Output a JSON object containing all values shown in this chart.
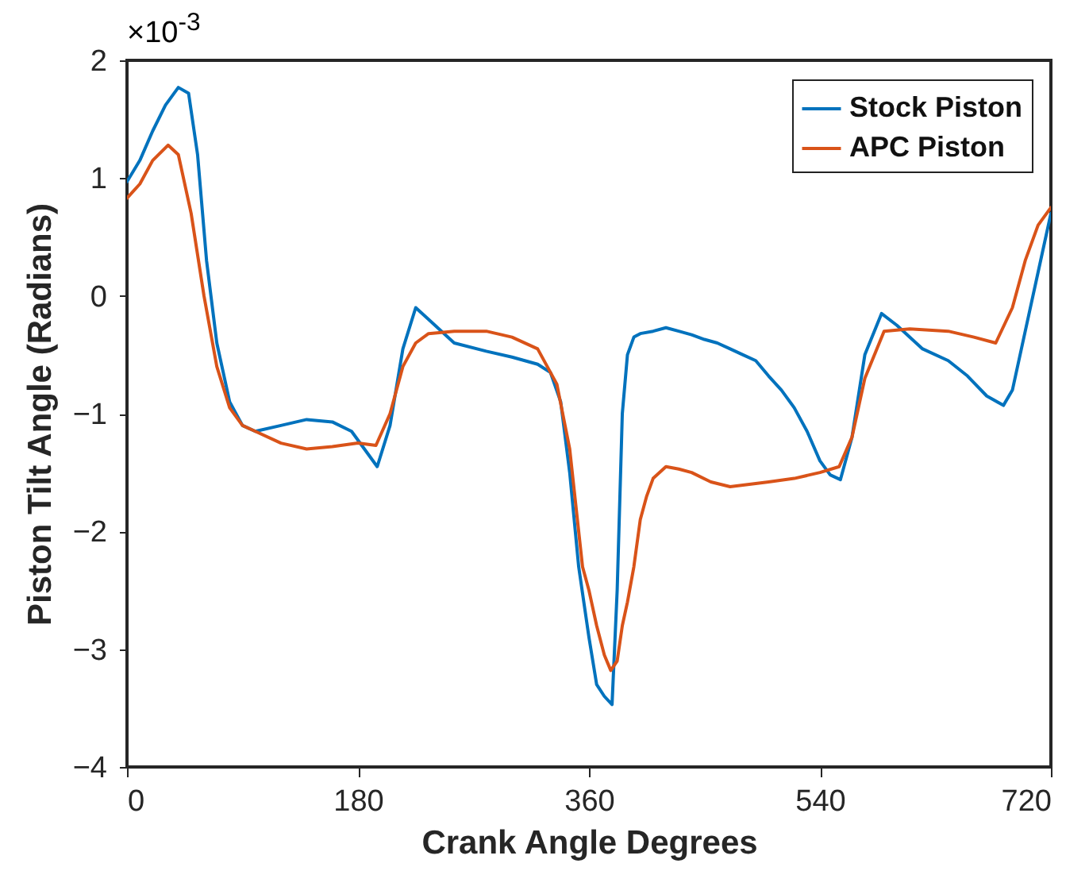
{
  "chart_data": {
    "type": "line",
    "xlabel": "Crank Angle Degrees",
    "ylabel": "Piston Tilt Angle (Radians)",
    "annotations": [
      "×10$^{-3}$"
    ],
    "xlim": [
      0,
      720
    ],
    "xticks": [
      0,
      180,
      360,
      540,
      720
    ],
    "ylim": [
      -4,
      2
    ],
    "yticks": [
      -4,
      -3,
      -2,
      -1,
      0,
      1,
      2
    ],
    "grid": false,
    "legend": "top right",
    "line_style": "solid",
    "marker": "none",
    "series": [
      {
        "name": "Stock Piston",
        "color": "#0072bd",
        "x": [
          0,
          10,
          20,
          30,
          40,
          48,
          55,
          62,
          70,
          80,
          90,
          100,
          120,
          140,
          160,
          175,
          185,
          195,
          205,
          215,
          225,
          235,
          255,
          280,
          300,
          320,
          330,
          338,
          345,
          352,
          360,
          366,
          372,
          378,
          382,
          386,
          390,
          395,
          400,
          410,
          420,
          430,
          440,
          450,
          460,
          470,
          480,
          490,
          500,
          510,
          520,
          530,
          540,
          548,
          556,
          565,
          575,
          588,
          600,
          620,
          640,
          655,
          670,
          683,
          690,
          700,
          710,
          720
        ],
        "values": [
          0.97,
          1.15,
          1.4,
          1.62,
          1.77,
          1.72,
          1.2,
          0.3,
          -0.4,
          -0.9,
          -1.1,
          -1.15,
          -1.1,
          -1.05,
          -1.07,
          -1.15,
          -1.3,
          -1.45,
          -1.1,
          -0.45,
          -0.1,
          -0.2,
          -0.4,
          -0.47,
          -0.52,
          -0.58,
          -0.65,
          -0.9,
          -1.5,
          -2.3,
          -2.9,
          -3.3,
          -3.4,
          -3.47,
          -2.5,
          -1.0,
          -0.5,
          -0.35,
          -0.32,
          -0.3,
          -0.27,
          -0.3,
          -0.33,
          -0.37,
          -0.4,
          -0.45,
          -0.5,
          -0.55,
          -0.68,
          -0.8,
          -0.95,
          -1.15,
          -1.4,
          -1.52,
          -1.56,
          -1.2,
          -0.5,
          -0.15,
          -0.25,
          -0.45,
          -0.55,
          -0.68,
          -0.85,
          -0.93,
          -0.8,
          -0.3,
          0.2,
          0.7
        ]
      },
      {
        "name": "APC Piston",
        "color": "#d95319",
        "x": [
          0,
          10,
          20,
          32,
          40,
          50,
          60,
          70,
          80,
          90,
          100,
          120,
          140,
          160,
          180,
          194,
          205,
          215,
          225,
          235,
          255,
          280,
          300,
          320,
          335,
          345,
          350,
          355,
          360,
          366,
          372,
          377,
          382,
          386,
          390,
          395,
          400,
          405,
          410,
          420,
          430,
          440,
          455,
          470,
          485,
          500,
          520,
          540,
          555,
          565,
          575,
          590,
          610,
          640,
          660,
          677,
          690,
          700,
          710,
          720
        ],
        "values": [
          0.83,
          0.95,
          1.15,
          1.28,
          1.2,
          0.7,
          0.0,
          -0.6,
          -0.95,
          -1.1,
          -1.15,
          -1.25,
          -1.3,
          -1.28,
          -1.25,
          -1.27,
          -1.0,
          -0.6,
          -0.4,
          -0.32,
          -0.3,
          -0.3,
          -0.35,
          -0.45,
          -0.75,
          -1.3,
          -1.8,
          -2.3,
          -2.5,
          -2.8,
          -3.05,
          -3.18,
          -3.1,
          -2.8,
          -2.6,
          -2.3,
          -1.9,
          -1.7,
          -1.55,
          -1.45,
          -1.47,
          -1.5,
          -1.58,
          -1.62,
          -1.6,
          -1.58,
          -1.55,
          -1.5,
          -1.45,
          -1.2,
          -0.7,
          -0.3,
          -0.28,
          -0.3,
          -0.35,
          -0.4,
          -0.1,
          0.3,
          0.6,
          0.75
        ]
      }
    ]
  }
}
